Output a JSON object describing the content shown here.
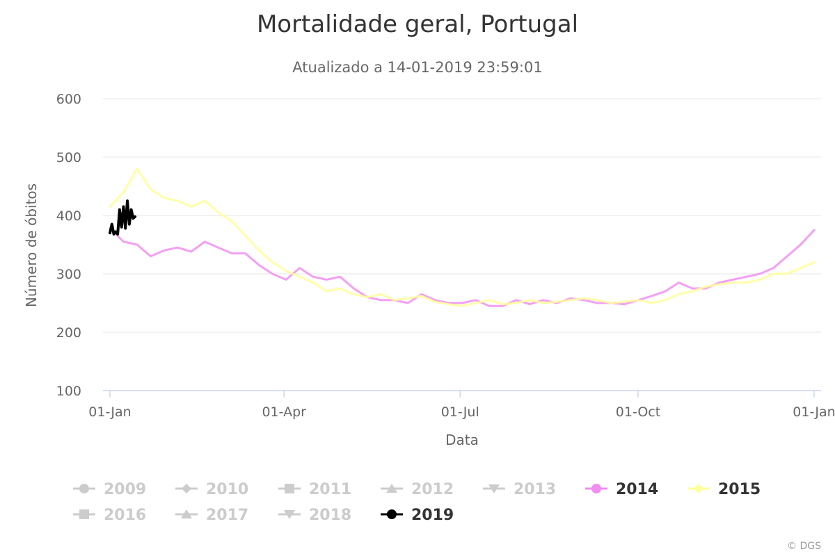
{
  "chart_data": {
    "type": "line",
    "title": "Mortalidade geral, Portugal",
    "subtitle": "Atualizado a 14-01-2019 23:59:01",
    "xlabel": "Data",
    "ylabel": "Número de óbitos",
    "x_ticks": [
      "01-Jan",
      "01-Apr",
      "01-Jul",
      "01-Oct",
      "01-Jan"
    ],
    "ylim": [
      100,
      600
    ],
    "y_ticks": [
      100,
      200,
      300,
      400,
      500,
      600
    ],
    "grid": true,
    "legend_position": "bottom",
    "credit": "© DGS",
    "legend": [
      {
        "name": "2009",
        "visible": false,
        "marker": "circle"
      },
      {
        "name": "2010",
        "visible": false,
        "marker": "diamond"
      },
      {
        "name": "2011",
        "visible": false,
        "marker": "square"
      },
      {
        "name": "2012",
        "visible": false,
        "marker": "triangle"
      },
      {
        "name": "2013",
        "visible": false,
        "marker": "triangle-down"
      },
      {
        "name": "2014",
        "visible": true,
        "marker": "circle",
        "color": "#f28ef2"
      },
      {
        "name": "2015",
        "visible": true,
        "marker": "diamond",
        "color": "#ffff99"
      },
      {
        "name": "2016",
        "visible": false,
        "marker": "square"
      },
      {
        "name": "2017",
        "visible": false,
        "marker": "triangle"
      },
      {
        "name": "2018",
        "visible": false,
        "marker": "triangle-down"
      },
      {
        "name": "2019",
        "visible": true,
        "marker": "circle",
        "color": "#000000"
      }
    ],
    "series": [
      {
        "name": "2014",
        "color": "#f28ef2",
        "x_unit": "day of year",
        "x": [
          1,
          8,
          15,
          22,
          29,
          36,
          43,
          50,
          57,
          64,
          71,
          78,
          85,
          92,
          99,
          106,
          113,
          120,
          127,
          134,
          141,
          148,
          155,
          162,
          169,
          176,
          183,
          190,
          197,
          204,
          211,
          218,
          225,
          232,
          239,
          246,
          253,
          260,
          267,
          274,
          281,
          288,
          295,
          302,
          309,
          316,
          323,
          330,
          337,
          344,
          351,
          358,
          365
        ],
        "values": [
          378,
          355,
          350,
          330,
          340,
          345,
          338,
          355,
          345,
          335,
          335,
          315,
          300,
          290,
          310,
          295,
          290,
          295,
          275,
          260,
          255,
          255,
          250,
          265,
          255,
          250,
          250,
          255,
          245,
          245,
          255,
          248,
          255,
          250,
          258,
          255,
          250,
          250,
          248,
          255,
          262,
          270,
          285,
          275,
          275,
          285,
          290,
          295,
          300,
          310,
          330,
          350,
          375
        ]
      },
      {
        "name": "2015",
        "color": "#ffff99",
        "x_unit": "day of year",
        "x": [
          1,
          8,
          15,
          22,
          29,
          36,
          43,
          50,
          57,
          64,
          71,
          78,
          85,
          92,
          99,
          106,
          113,
          120,
          127,
          134,
          141,
          148,
          155,
          162,
          169,
          176,
          183,
          190,
          197,
          204,
          211,
          218,
          225,
          232,
          239,
          246,
          253,
          260,
          267,
          274,
          281,
          288,
          295,
          302,
          309,
          316,
          323,
          330,
          337,
          344,
          351,
          358,
          365
        ],
        "values": [
          415,
          440,
          480,
          445,
          430,
          425,
          415,
          425,
          405,
          390,
          365,
          340,
          320,
          305,
          295,
          285,
          270,
          275,
          265,
          260,
          265,
          255,
          258,
          262,
          252,
          248,
          245,
          250,
          255,
          248,
          250,
          255,
          250,
          252,
          255,
          258,
          255,
          250,
          252,
          255,
          250,
          255,
          265,
          270,
          278,
          282,
          285,
          285,
          290,
          300,
          300,
          310,
          320
        ]
      },
      {
        "name": "2019",
        "color": "#000000",
        "x_unit": "day of year",
        "x": [
          1,
          2,
          3,
          4,
          5,
          6,
          7,
          8,
          9,
          10,
          11,
          12,
          13,
          14
        ],
        "values": [
          370,
          385,
          368,
          372,
          368,
          410,
          380,
          415,
          378,
          425,
          385,
          410,
          395,
          398
        ]
      }
    ]
  }
}
